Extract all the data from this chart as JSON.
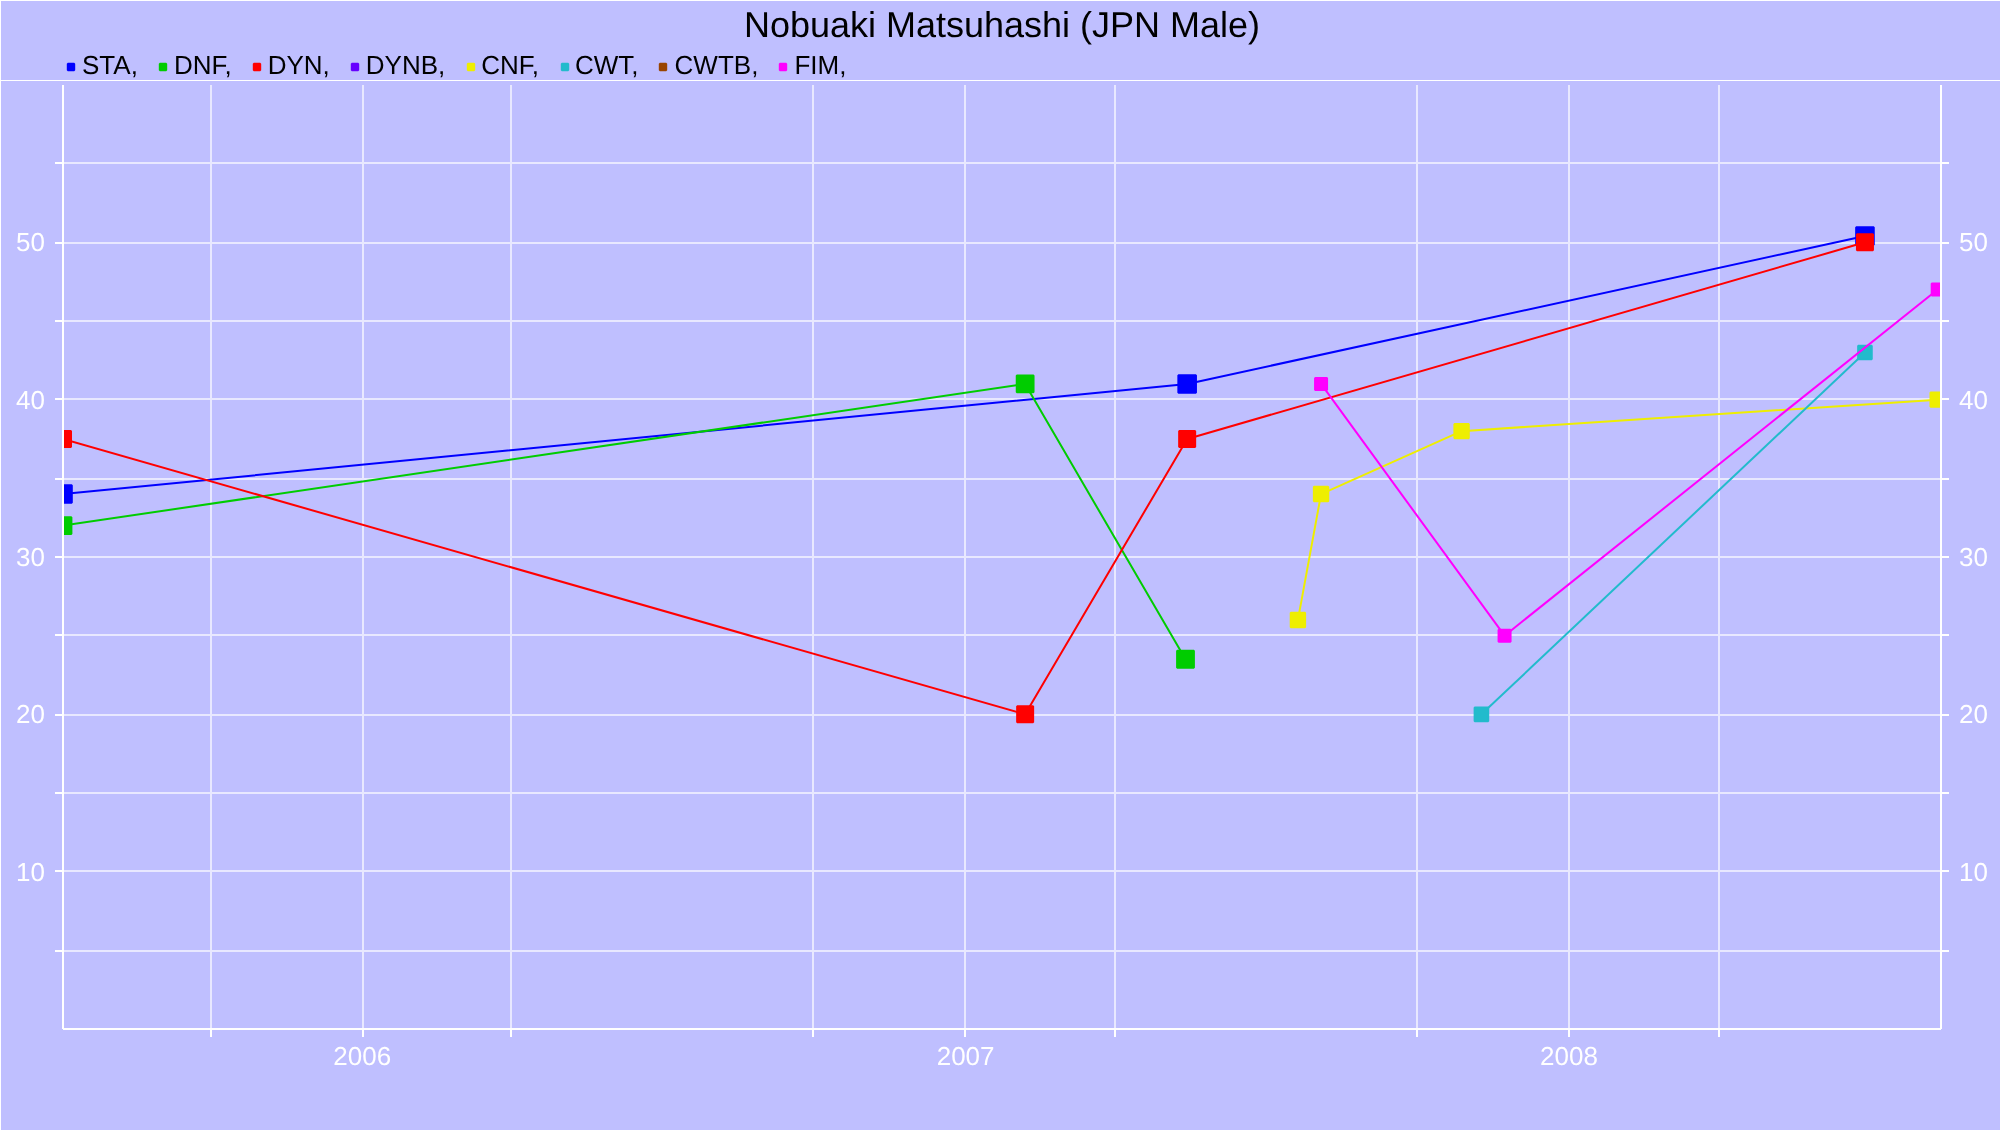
{
  "chart_data": {
    "type": "line",
    "title": "Nobuaki Matsuhashi (JPN Male)",
    "xlim": [
      "2005-07-04",
      "2008-08-13"
    ],
    "xticks": [
      {
        "value": "2005-10-01",
        "label": null
      },
      "2006",
      {
        "value": "2006-04-01",
        "label": null
      },
      {
        "value": "2006-10-01",
        "label": null
      },
      "2007",
      {
        "value": "2007-04-01",
        "label": null
      },
      {
        "value": "2007-10-01",
        "label": null
      },
      "2008",
      {
        "value": "2008-04-01",
        "label": null
      }
    ],
    "ylim": [
      0,
      60
    ],
    "yticks": [
      {
        "value": 5,
        "label": null
      },
      10,
      {
        "value": 15,
        "label": null
      },
      20,
      {
        "value": 25,
        "label": null
      },
      30,
      {
        "value": 35,
        "label": null
      },
      40,
      {
        "value": 45,
        "label": null
      },
      50,
      {
        "value": 55,
        "label": null
      }
    ],
    "y2lim": [
      0,
      60
    ],
    "y2ticks": [
      {
        "value": 5,
        "label": null
      },
      10,
      {
        "value": 15,
        "label": null
      },
      20,
      {
        "value": 25,
        "label": null
      },
      30,
      {
        "value": 35,
        "label": null
      },
      40,
      {
        "value": 45,
        "label": null
      },
      50,
      {
        "value": 55,
        "label": null
      }
    ],
    "grid": true,
    "legend": "top left",
    "marker": "square",
    "line_style": "solid",
    "series": [
      {
        "name": "STA,",
        "color": "#0000ff",
        "x": [
          "2005-07-04",
          "2007-05-15",
          "2008-06-28"
        ],
        "values": [
          34,
          41,
          50.4
        ]
      },
      {
        "name": "DNF,",
        "color": "#00cc00",
        "x": [
          "2005-07-04",
          "2007-02-06",
          "2007-05-14"
        ],
        "values": [
          32,
          41,
          23.5
        ]
      },
      {
        "name": "DYN,",
        "color": "#ff0000",
        "x": [
          "2005-07-04",
          "2007-02-06",
          "2007-05-15",
          "2008-06-28"
        ],
        "values": [
          37.5,
          20,
          37.5,
          50
        ]
      },
      {
        "name": "DYNB,",
        "color": "#6600ff"
      },
      {
        "name": "CNF,",
        "color": "#eeee00",
        "x": [
          "2007-07-21",
          "2007-08-04",
          "2007-10-28",
          "2008-08-11"
        ],
        "values": [
          26,
          34,
          38,
          40
        ]
      },
      {
        "name": "CWT,",
        "color": "#22bbcc",
        "x": [
          "2007-11-09",
          "2008-06-28"
        ],
        "values": [
          20,
          43
        ]
      },
      {
        "name": "CWTB,",
        "color": "#994400"
      },
      {
        "name": "FIM,",
        "color": "#ff00ff",
        "x": [
          "2007-08-04",
          "2007-11-23",
          "2008-08-11"
        ],
        "values": [
          41,
          25,
          47
        ]
      }
    ]
  }
}
